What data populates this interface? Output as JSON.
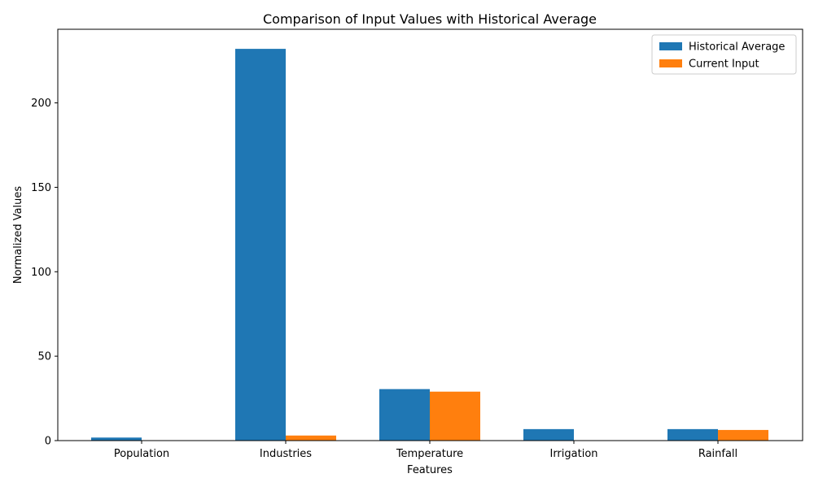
{
  "chart_data": {
    "type": "bar",
    "title": "Comparison of Input Values with Historical Average",
    "xlabel": "Features",
    "ylabel": "Normalized Values",
    "categories": [
      "Population",
      "Industries",
      "Temperature",
      "Irrigation",
      "Rainfall"
    ],
    "series": [
      {
        "name": "Historical Average",
        "color": "#1f77b4",
        "values": [
          1.8,
          232,
          30.5,
          6.8,
          6.8
        ]
      },
      {
        "name": "Current Input",
        "color": "#ff7f0e",
        "values": [
          0.1,
          3.0,
          29.0,
          0.1,
          6.3
        ]
      }
    ],
    "ylim": [
      0,
      243.6
    ],
    "yticks": [
      0,
      50,
      100,
      150,
      200
    ],
    "grid": false,
    "legend_position": "top-right"
  }
}
